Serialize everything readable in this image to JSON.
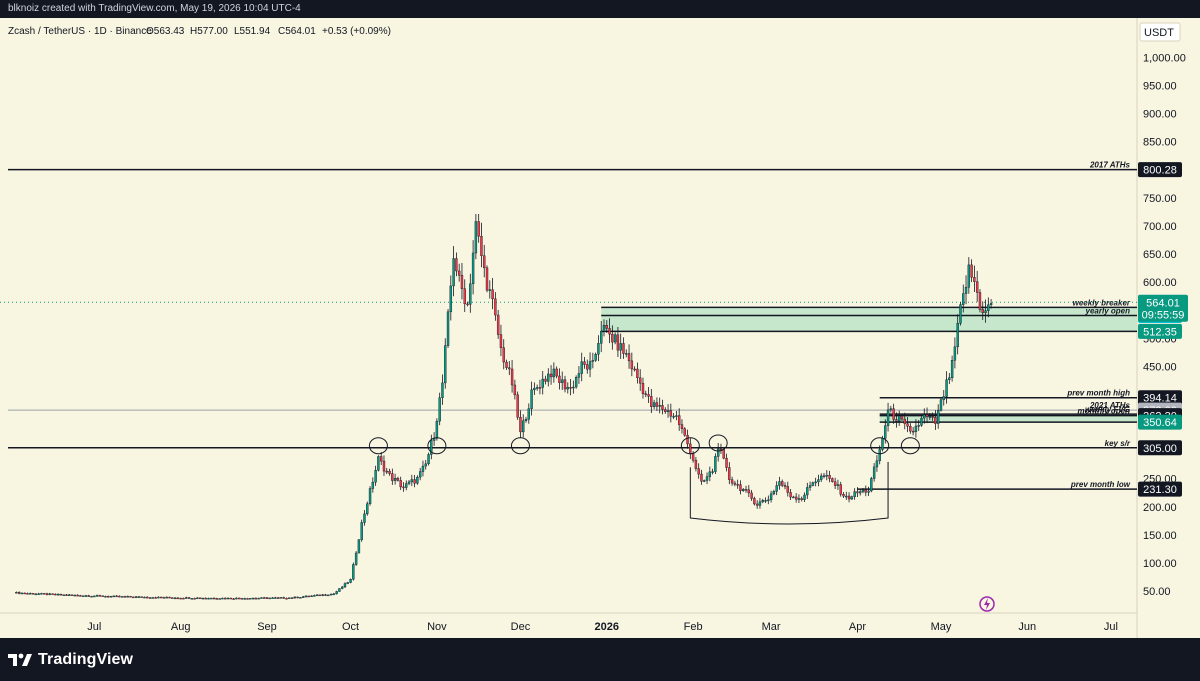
{
  "attribution": "blknoiz created with TradingView.com, May 19, 2026 10:04 UTC-4",
  "branding": "TradingView",
  "legend": {
    "symbol": "Zcash / TetherUS · 1D · Binance",
    "open": "O563.43",
    "high": "H577.00",
    "low": "L551.94",
    "close": "C564.01",
    "change": "+0.53 (+0.09%)"
  },
  "currency": "USDT",
  "colors": {
    "background": "#f8f5e1",
    "frame": "#131722",
    "up": "#089981",
    "down": "#f23645",
    "zone_fill": "#b9e3c6",
    "level_line": "#131722"
  },
  "chart_data": {
    "type": "candlestick",
    "symbol": "ZECUSDT",
    "timeframe": "1D",
    "exchange": "Binance",
    "y_axis": {
      "ticks": [
        "50.00",
        "100.00",
        "150.00",
        "200.00",
        "250.00",
        "300.00",
        "350.00",
        "400.00",
        "450.00",
        "500.00",
        "550.00",
        "600.00",
        "650.00",
        "700.00",
        "750.00",
        "800.00",
        "850.00",
        "900.00",
        "950.00",
        "1,000.00"
      ],
      "range": [
        25,
        1010
      ]
    },
    "x_axis": {
      "ticks": [
        {
          "label": "Jul",
          "date": "2025-07-01"
        },
        {
          "label": "Aug",
          "date": "2025-08-01"
        },
        {
          "label": "Sep",
          "date": "2025-09-01"
        },
        {
          "label": "Oct",
          "date": "2025-10-01"
        },
        {
          "label": "Nov",
          "date": "2025-11-01"
        },
        {
          "label": "Dec",
          "date": "2025-12-01"
        },
        {
          "label": "2026",
          "date": "2026-01-01"
        },
        {
          "label": "Feb",
          "date": "2026-02-01"
        },
        {
          "label": "Mar",
          "date": "2026-03-01"
        },
        {
          "label": "Apr",
          "date": "2026-04-01"
        },
        {
          "label": "May",
          "date": "2026-05-01"
        },
        {
          "label": "Jun",
          "date": "2026-06-01"
        },
        {
          "label": "Jul",
          "date": "2026-07-01"
        }
      ]
    },
    "price_path": [
      [
        "2025-06-02",
        47
      ],
      [
        "2025-06-20",
        43
      ],
      [
        "2025-07-10",
        40
      ],
      [
        "2025-07-31",
        38
      ],
      [
        "2025-08-20",
        37
      ],
      [
        "2025-09-10",
        38
      ],
      [
        "2025-09-25",
        45
      ],
      [
        "2025-10-01",
        70
      ],
      [
        "2025-10-05",
        170
      ],
      [
        "2025-10-11",
        285
      ],
      [
        "2025-10-15",
        255
      ],
      [
        "2025-10-20",
        235
      ],
      [
        "2025-10-25",
        250
      ],
      [
        "2025-10-28",
        275
      ],
      [
        "2025-10-31",
        330
      ],
      [
        "2025-11-03",
        420
      ],
      [
        "2025-11-07",
        650
      ],
      [
        "2025-11-09",
        600
      ],
      [
        "2025-11-12",
        560
      ],
      [
        "2025-11-15",
        700
      ],
      [
        "2025-11-18",
        620
      ],
      [
        "2025-11-21",
        560
      ],
      [
        "2025-11-24",
        480
      ],
      [
        "2025-11-28",
        420
      ],
      [
        "2025-12-01",
        330
      ],
      [
        "2025-12-05",
        400
      ],
      [
        "2025-12-08",
        420
      ],
      [
        "2025-12-12",
        440
      ],
      [
        "2025-12-16",
        420
      ],
      [
        "2025-12-19",
        410
      ],
      [
        "2025-12-23",
        450
      ],
      [
        "2025-12-27",
        450
      ],
      [
        "2025-12-30",
        520
      ],
      [
        "2026-01-03",
        500
      ],
      [
        "2026-01-08",
        470
      ],
      [
        "2026-01-12",
        430
      ],
      [
        "2026-01-17",
        380
      ],
      [
        "2026-01-21",
        375
      ],
      [
        "2026-01-26",
        360
      ],
      [
        "2026-01-31",
        300
      ],
      [
        "2026-02-04",
        240
      ],
      [
        "2026-02-08",
        265
      ],
      [
        "2026-02-10",
        310
      ],
      [
        "2026-02-14",
        250
      ],
      [
        "2026-02-19",
        230
      ],
      [
        "2026-02-24",
        205
      ],
      [
        "2026-02-28",
        215
      ],
      [
        "2026-03-04",
        245
      ],
      [
        "2026-03-08",
        220
      ],
      [
        "2026-03-12",
        215
      ],
      [
        "2026-03-16",
        245
      ],
      [
        "2026-03-20",
        255
      ],
      [
        "2026-03-24",
        240
      ],
      [
        "2026-03-28",
        215
      ],
      [
        "2026-04-01",
        225
      ],
      [
        "2026-04-05",
        230
      ],
      [
        "2026-04-09",
        300
      ],
      [
        "2026-04-12",
        370
      ],
      [
        "2026-04-16",
        355
      ],
      [
        "2026-04-20",
        330
      ],
      [
        "2026-04-25",
        360
      ],
      [
        "2026-04-29",
        350
      ],
      [
        "2026-05-02",
        400
      ],
      [
        "2026-05-05",
        450
      ],
      [
        "2026-05-08",
        550
      ],
      [
        "2026-05-11",
        620
      ],
      [
        "2026-05-13",
        600
      ],
      [
        "2026-05-15",
        560
      ],
      [
        "2026-05-17",
        545
      ],
      [
        "2026-05-19",
        564.01
      ]
    ],
    "levels": [
      {
        "label": "2017 ATHs",
        "value": 800.28,
        "tag": "800.28",
        "tag_bg": "#131722",
        "start": "2025-05-31"
      },
      {
        "label": "weekly breaker",
        "value": 555,
        "start": "2025-12-30"
      },
      {
        "label": "yearly open",
        "value": 540.49,
        "tag": "540.49",
        "tag_bg": "#00bcd4",
        "start": "2025-12-30"
      },
      {
        "label": "",
        "value": 512.35,
        "tag": "512.35",
        "tag_bg": "#089981",
        "start": "2025-12-30"
      },
      {
        "label": "prev month high",
        "value": 394.14,
        "tag": "394.14",
        "tag_bg": "#131722",
        "start": "2026-04-09"
      },
      {
        "label": "2021 ATHs",
        "value": 372,
        "tag": "372.00",
        "tag_bg": "#b2b5be",
        "start": "2025-05-31",
        "thin": true
      },
      {
        "label": "weekly FVG",
        "value": 365,
        "start": "2026-04-09"
      },
      {
        "label": "monthly open",
        "value": 362.3,
        "tag": "362.30",
        "tag_bg": "#131722",
        "start": "2026-04-09"
      },
      {
        "label": "",
        "value": 350.64,
        "tag": "350.64",
        "tag_bg": "#089981",
        "start": "2026-04-09"
      },
      {
        "label": "key s/r",
        "value": 305,
        "tag": "305.00",
        "tag_bg": "#131722",
        "start": "2025-05-31"
      },
      {
        "label": "prev month low",
        "value": 231.3,
        "tag": "231.30",
        "tag_bg": "#131722",
        "start": "2026-04-01"
      }
    ],
    "zones": [
      {
        "start": "2025-12-30",
        "top": 555,
        "bottom": 512.35
      },
      {
        "start": "2026-04-09",
        "top": 365,
        "bottom": 350.64
      }
    ],
    "last_price": {
      "value": 564.01,
      "tag": "564.01",
      "countdown": "09:55:59",
      "tag_bg": "#089981"
    }
  }
}
